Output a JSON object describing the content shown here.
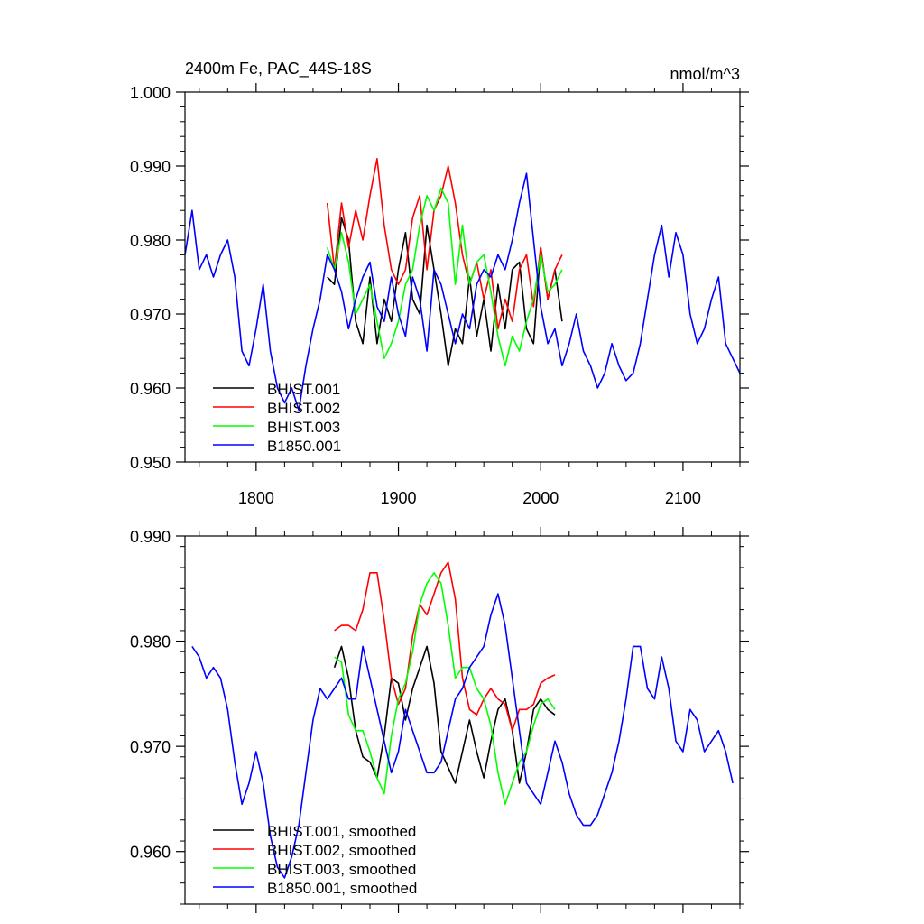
{
  "chart_data": [
    {
      "type": "line",
      "title": "2400m Fe, PAC_44S-18S",
      "units": "nmol/m^3",
      "xlim": [
        1750,
        2140
      ],
      "ylim": [
        0.95,
        1.0
      ],
      "x_ticks": [
        1800,
        1900,
        2000,
        2100
      ],
      "x_tick_labels": [
        "1800",
        "1900",
        "2000",
        "2100"
      ],
      "y_ticks": [
        0.95,
        0.96,
        0.97,
        0.98,
        0.99,
        1.0
      ],
      "y_tick_labels": [
        "0.950",
        "0.960",
        "0.970",
        "0.980",
        "0.990",
        "1.000"
      ],
      "legend_position": "bottom-left",
      "series": [
        {
          "name": "BHIST.001",
          "color": "#000000",
          "x": [
            1850,
            1855,
            1860,
            1865,
            1870,
            1875,
            1880,
            1885,
            1890,
            1895,
            1900,
            1905,
            1910,
            1915,
            1920,
            1925,
            1930,
            1935,
            1940,
            1945,
            1950,
            1955,
            1960,
            1965,
            1970,
            1975,
            1980,
            1985,
            1990,
            1995,
            2000,
            2005,
            2010,
            2015
          ],
          "y": [
            0.975,
            0.974,
            0.983,
            0.98,
            0.969,
            0.966,
            0.975,
            0.966,
            0.972,
            0.969,
            0.976,
            0.981,
            0.972,
            0.97,
            0.982,
            0.976,
            0.97,
            0.963,
            0.968,
            0.966,
            0.975,
            0.967,
            0.972,
            0.965,
            0.974,
            0.968,
            0.976,
            0.977,
            0.968,
            0.966,
            0.979,
            0.972,
            0.976,
            0.969
          ]
        },
        {
          "name": "BHIST.002",
          "color": "#ff0000",
          "x": [
            1850,
            1855,
            1860,
            1865,
            1870,
            1875,
            1880,
            1885,
            1890,
            1895,
            1900,
            1905,
            1910,
            1915,
            1920,
            1925,
            1930,
            1935,
            1940,
            1945,
            1950,
            1955,
            1960,
            1965,
            1970,
            1975,
            1980,
            1985,
            1990,
            1995,
            2000,
            2005,
            2010,
            2015
          ],
          "y": [
            0.985,
            0.976,
            0.985,
            0.979,
            0.984,
            0.98,
            0.986,
            0.991,
            0.982,
            0.976,
            0.974,
            0.976,
            0.983,
            0.986,
            0.976,
            0.984,
            0.986,
            0.99,
            0.985,
            0.978,
            0.974,
            0.977,
            0.972,
            0.976,
            0.968,
            0.972,
            0.969,
            0.976,
            0.978,
            0.971,
            0.979,
            0.972,
            0.976,
            0.978
          ]
        },
        {
          "name": "BHIST.003",
          "color": "#00ff00",
          "x": [
            1850,
            1855,
            1860,
            1865,
            1870,
            1875,
            1880,
            1885,
            1890,
            1895,
            1900,
            1905,
            1910,
            1915,
            1920,
            1925,
            1930,
            1935,
            1940,
            1945,
            1950,
            1955,
            1960,
            1965,
            1970,
            1975,
            1980,
            1985,
            1990,
            1995,
            2000,
            2005,
            2010,
            2015
          ],
          "y": [
            0.979,
            0.976,
            0.981,
            0.977,
            0.97,
            0.972,
            0.974,
            0.969,
            0.964,
            0.966,
            0.969,
            0.974,
            0.976,
            0.982,
            0.986,
            0.984,
            0.987,
            0.985,
            0.974,
            0.982,
            0.974,
            0.977,
            0.978,
            0.973,
            0.967,
            0.963,
            0.967,
            0.965,
            0.969,
            0.972,
            0.978,
            0.973,
            0.974,
            0.976
          ]
        },
        {
          "name": "B1850.001",
          "color": "#0000ff",
          "x": [
            1750,
            1755,
            1760,
            1765,
            1770,
            1775,
            1780,
            1785,
            1790,
            1795,
            1800,
            1805,
            1810,
            1815,
            1820,
            1825,
            1830,
            1835,
            1840,
            1845,
            1850,
            1855,
            1860,
            1865,
            1870,
            1875,
            1880,
            1885,
            1890,
            1895,
            1900,
            1905,
            1910,
            1915,
            1920,
            1925,
            1930,
            1935,
            1940,
            1945,
            1950,
            1955,
            1960,
            1965,
            1970,
            1975,
            1980,
            1985,
            1990,
            1995,
            2000,
            2005,
            2010,
            2015,
            2020,
            2025,
            2030,
            2035,
            2040,
            2045,
            2050,
            2055,
            2060,
            2065,
            2070,
            2075,
            2080,
            2085,
            2090,
            2095,
            2100,
            2105,
            2110,
            2115,
            2120,
            2125,
            2130,
            2135,
            2140
          ],
          "y": [
            0.978,
            0.984,
            0.976,
            0.978,
            0.975,
            0.978,
            0.98,
            0.975,
            0.965,
            0.963,
            0.968,
            0.974,
            0.965,
            0.96,
            0.958,
            0.96,
            0.957,
            0.963,
            0.968,
            0.972,
            0.978,
            0.976,
            0.973,
            0.968,
            0.972,
            0.975,
            0.977,
            0.971,
            0.969,
            0.975,
            0.97,
            0.967,
            0.975,
            0.972,
            0.965,
            0.976,
            0.974,
            0.97,
            0.966,
            0.97,
            0.968,
            0.974,
            0.976,
            0.975,
            0.978,
            0.976,
            0.98,
            0.985,
            0.989,
            0.98,
            0.971,
            0.966,
            0.968,
            0.963,
            0.966,
            0.97,
            0.965,
            0.963,
            0.96,
            0.962,
            0.966,
            0.963,
            0.961,
            0.962,
            0.966,
            0.972,
            0.978,
            0.982,
            0.975,
            0.981,
            0.978,
            0.97,
            0.966,
            0.968,
            0.972,
            0.975,
            0.966,
            0.964,
            0.962
          ]
        }
      ]
    },
    {
      "type": "line",
      "title": "",
      "xlim": [
        1750,
        2140
      ],
      "ylim": [
        0.955,
        0.99
      ],
      "x_ticks": [
        1800,
        1900,
        2000,
        2100
      ],
      "y_ticks": [
        0.96,
        0.97,
        0.98,
        0.99
      ],
      "y_tick_labels": [
        "0.960",
        "0.970",
        "0.980",
        "0.990"
      ],
      "legend_position": "bottom-left",
      "series": [
        {
          "name": "BHIST.001, smoothed",
          "color": "#000000",
          "x": [
            1855,
            1860,
            1865,
            1870,
            1875,
            1880,
            1885,
            1890,
            1895,
            1900,
            1905,
            1910,
            1915,
            1920,
            1925,
            1930,
            1935,
            1940,
            1945,
            1950,
            1955,
            1960,
            1965,
            1970,
            1975,
            1980,
            1985,
            1990,
            1995,
            2000,
            2005,
            2010
          ],
          "y": [
            0.9775,
            0.9795,
            0.9765,
            0.9715,
            0.969,
            0.9685,
            0.967,
            0.971,
            0.9765,
            0.976,
            0.9725,
            0.9755,
            0.9775,
            0.9795,
            0.976,
            0.9695,
            0.968,
            0.9665,
            0.9695,
            0.9725,
            0.9695,
            0.967,
            0.9705,
            0.9735,
            0.9745,
            0.9715,
            0.9665,
            0.9695,
            0.9735,
            0.9745,
            0.9735,
            0.973
          ]
        },
        {
          "name": "BHIST.002, smoothed",
          "color": "#ff0000",
          "x": [
            1855,
            1860,
            1865,
            1870,
            1875,
            1880,
            1885,
            1890,
            1895,
            1900,
            1905,
            1910,
            1915,
            1920,
            1925,
            1930,
            1935,
            1940,
            1945,
            1950,
            1955,
            1960,
            1965,
            1970,
            1975,
            1980,
            1985,
            1990,
            1995,
            2000,
            2005,
            2010
          ],
          "y": [
            0.981,
            0.9815,
            0.9815,
            0.981,
            0.983,
            0.9865,
            0.9865,
            0.982,
            0.9765,
            0.974,
            0.9755,
            0.9805,
            0.9835,
            0.9825,
            0.9845,
            0.9865,
            0.9875,
            0.984,
            0.9765,
            0.9735,
            0.973,
            0.9745,
            0.9755,
            0.9745,
            0.974,
            0.9715,
            0.9735,
            0.9735,
            0.974,
            0.976,
            0.9765,
            0.9768
          ]
        },
        {
          "name": "BHIST.003, smoothed",
          "color": "#00ff00",
          "x": [
            1855,
            1860,
            1865,
            1870,
            1875,
            1880,
            1885,
            1890,
            1895,
            1900,
            1905,
            1910,
            1915,
            1920,
            1925,
            1930,
            1935,
            1940,
            1945,
            1950,
            1955,
            1960,
            1965,
            1970,
            1975,
            1980,
            1985,
            1990,
            1995,
            2000,
            2005,
            2010
          ],
          "y": [
            0.9785,
            0.978,
            0.973,
            0.9715,
            0.9715,
            0.9695,
            0.967,
            0.9655,
            0.971,
            0.9745,
            0.976,
            0.979,
            0.9835,
            0.9855,
            0.9865,
            0.9855,
            0.9815,
            0.9765,
            0.9775,
            0.9775,
            0.9755,
            0.9745,
            0.972,
            0.9675,
            0.9645,
            0.9665,
            0.9685,
            0.9695,
            0.972,
            0.974,
            0.9745,
            0.9735
          ]
        },
        {
          "name": "B1850.001, smoothed",
          "color": "#0000ff",
          "x": [
            1755,
            1760,
            1765,
            1770,
            1775,
            1780,
            1785,
            1790,
            1795,
            1800,
            1805,
            1810,
            1815,
            1820,
            1825,
            1830,
            1835,
            1840,
            1845,
            1850,
            1855,
            1860,
            1865,
            1870,
            1875,
            1880,
            1885,
            1890,
            1895,
            1900,
            1905,
            1910,
            1915,
            1920,
            1925,
            1930,
            1935,
            1940,
            1945,
            1950,
            1955,
            1960,
            1965,
            1970,
            1975,
            1980,
            1985,
            1990,
            1995,
            2000,
            2005,
            2010,
            2015,
            2020,
            2025,
            2030,
            2035,
            2040,
            2045,
            2050,
            2055,
            2060,
            2065,
            2070,
            2075,
            2080,
            2085,
            2090,
            2095,
            2100,
            2105,
            2110,
            2115,
            2120,
            2125,
            2130,
            2135
          ],
          "y": [
            0.9795,
            0.9785,
            0.9765,
            0.9775,
            0.9765,
            0.9735,
            0.9685,
            0.9645,
            0.9665,
            0.9695,
            0.9665,
            0.9615,
            0.9585,
            0.9575,
            0.9595,
            0.9625,
            0.9675,
            0.9725,
            0.9755,
            0.9745,
            0.9755,
            0.9765,
            0.9745,
            0.9745,
            0.9795,
            0.9765,
            0.9735,
            0.9705,
            0.9675,
            0.9695,
            0.9735,
            0.9715,
            0.9695,
            0.9675,
            0.9675,
            0.9685,
            0.9715,
            0.9745,
            0.9755,
            0.9775,
            0.9785,
            0.9795,
            0.9825,
            0.9845,
            0.9815,
            0.9765,
            0.9715,
            0.9665,
            0.9655,
            0.9645,
            0.9675,
            0.9705,
            0.9685,
            0.9655,
            0.9635,
            0.9625,
            0.9625,
            0.9635,
            0.9655,
            0.9675,
            0.9705,
            0.9745,
            0.9795,
            0.9795,
            0.9755,
            0.9745,
            0.9785,
            0.9755,
            0.9705,
            0.9695,
            0.9735,
            0.9725,
            0.9695,
            0.9705,
            0.9715,
            0.9695,
            0.9665
          ]
        }
      ]
    }
  ]
}
